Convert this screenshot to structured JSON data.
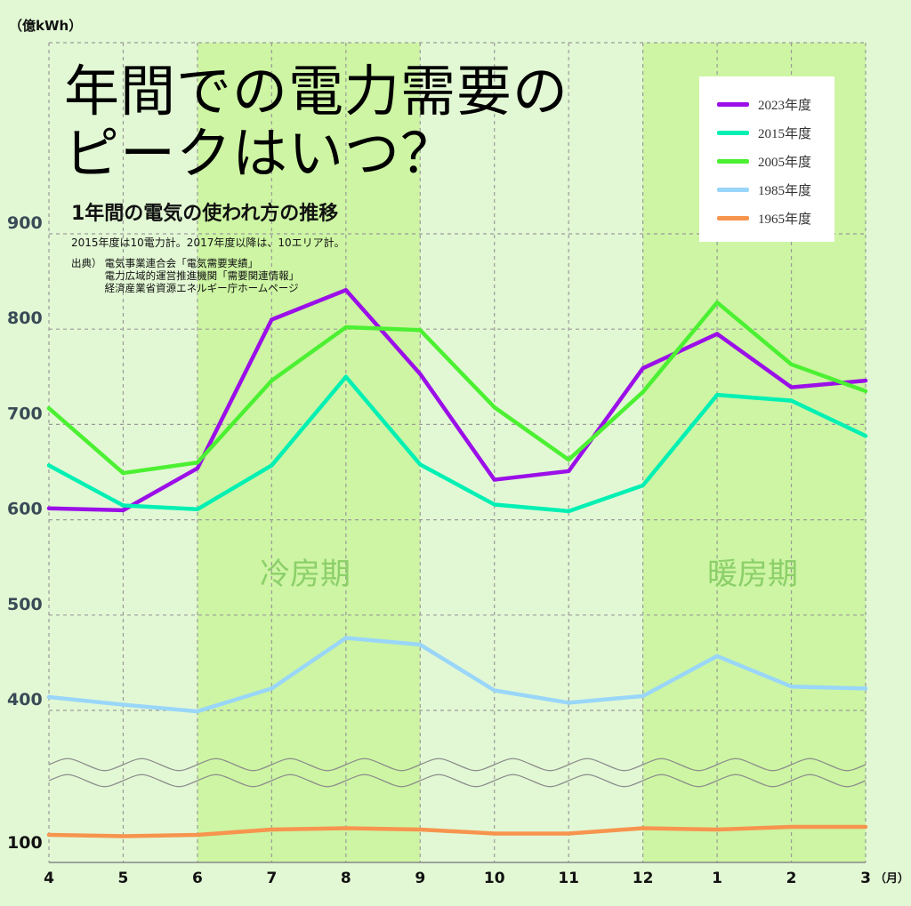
{
  "title": "年間での電力需要の\nピークはいつ？",
  "subtitle": "1年間の電気の使われ方の推移",
  "note": "2015年度は10電力計。2017年度以降は、10エリア計。",
  "source_label": "出典）",
  "source_lines": [
    "電気事業連合会「電気需要実績」",
    "電力広域的運営推進機関「需要関連情報」",
    "経済産業省資源エネルギー庁ホームページ"
  ],
  "unit": "（億kWh）",
  "period_cooling": "冷房期",
  "period_heating": "暖房期",
  "legend": [
    {
      "label": "2023年度",
      "color": "#9b0fe8"
    },
    {
      "label": "2015年度",
      "color": "#00f0b4"
    },
    {
      "label": "2005年度",
      "color": "#4cf032"
    },
    {
      "label": "1985年度",
      "color": "#99d6f9"
    },
    {
      "label": "1965年度",
      "color": "#f7944e"
    }
  ],
  "chart_data": {
    "type": "line",
    "title": "年間での電力需要のピークはいつ？",
    "subtitle": "1年間の電気の使われ方の推移",
    "x": [
      "4",
      "5",
      "6",
      "7",
      "8",
      "9",
      "10",
      "11",
      "12",
      "1",
      "2",
      "3"
    ],
    "xlabel": "（月）",
    "ylabel": "（億kWh）",
    "y_ticks": [
      "100",
      "400",
      "500",
      "600",
      "700",
      "800",
      "900"
    ],
    "axis_break": "between 100 and 400",
    "grid": true,
    "legend_position": "top-right",
    "shaded_periods": [
      {
        "label": "冷房期",
        "from": "6",
        "to": "9"
      },
      {
        "label": "暖房期",
        "from": "12",
        "to": "3"
      }
    ],
    "series": [
      {
        "name": "2023年度",
        "color": "#9b0fe8",
        "values": [
          612,
          610,
          654,
          810,
          841,
          753,
          642,
          651,
          759,
          795,
          739,
          746
        ]
      },
      {
        "name": "2015年度",
        "color": "#00f0b4",
        "values": [
          657,
          615,
          611,
          657,
          750,
          658,
          616,
          609,
          636,
          731,
          725,
          688
        ]
      },
      {
        "name": "2005年度",
        "color": "#4cf032",
        "values": [
          717,
          649,
          660,
          746,
          802,
          799,
          718,
          663,
          734,
          828,
          763,
          735
        ]
      },
      {
        "name": "1985年度",
        "color": "#99d6f9",
        "values": [
          414,
          406,
          399,
          423,
          476,
          469,
          421,
          408,
          415,
          457,
          425,
          423
        ]
      },
      {
        "name": "1965年度",
        "color": "#f7944e",
        "values": [
          114,
          113,
          114,
          118,
          119,
          118,
          115,
          115,
          119,
          118,
          120,
          120
        ]
      }
    ]
  }
}
